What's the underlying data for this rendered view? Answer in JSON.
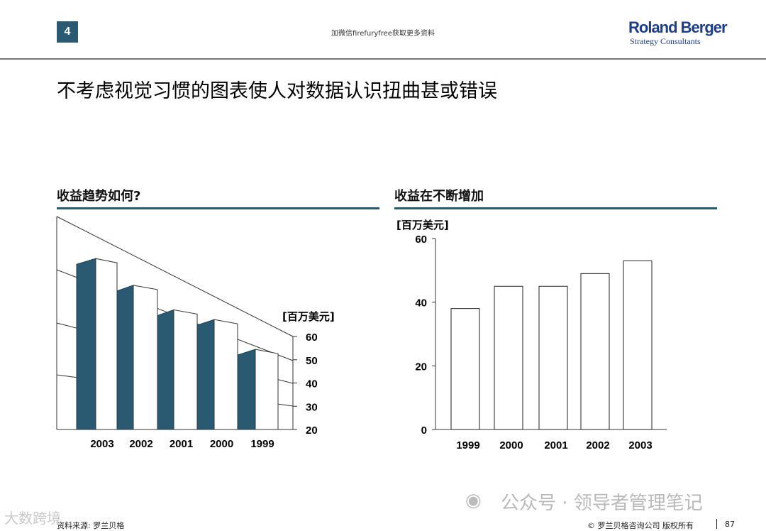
{
  "header": {
    "page_number": "4",
    "note": "加微信firefuryfree获取更多资料",
    "logo_brand": "Roland Berger",
    "logo_sub": "Strategy Consultants"
  },
  "title": "不考虑视觉习惯的图表使人对数据认识扭曲甚或错误",
  "colors": {
    "accent": "#2a5a72",
    "logo": "#1c3d8c",
    "rule": "#777777"
  },
  "left_chart": {
    "heading": "收益趋势如何?"
  },
  "right_chart": {
    "heading": "收益在不断增加"
  },
  "chart_data": [
    {
      "type": "bar",
      "style": "3d-perspective",
      "unit_label": "[百万美元]",
      "categories": [
        "2003",
        "2002",
        "2001",
        "2000",
        "1999"
      ],
      "values": [
        53,
        49,
        45,
        45,
        38
      ],
      "ylim": [
        20,
        60
      ],
      "yticks": [
        "60",
        "50",
        "40",
        "30",
        "20"
      ],
      "grid": true,
      "axis_position": "right"
    },
    {
      "type": "bar",
      "unit_label": "[百万美元]",
      "categories": [
        "1999",
        "2000",
        "2001",
        "2002",
        "2003"
      ],
      "values": [
        38,
        45,
        45,
        49,
        53
      ],
      "ylim": [
        0,
        60
      ],
      "yticks": [
        "60",
        "40",
        "20",
        "0"
      ],
      "grid": false
    }
  ],
  "footer": {
    "source": "资料来源: 罗兰贝格",
    "copyright": "© 罗兰贝格咨询公司 版权所有",
    "page": "87"
  },
  "watermark": {
    "icon": "wechat-icon",
    "text": "公众号 · 领导者管理笔记",
    "left_text": "大数跨境"
  }
}
